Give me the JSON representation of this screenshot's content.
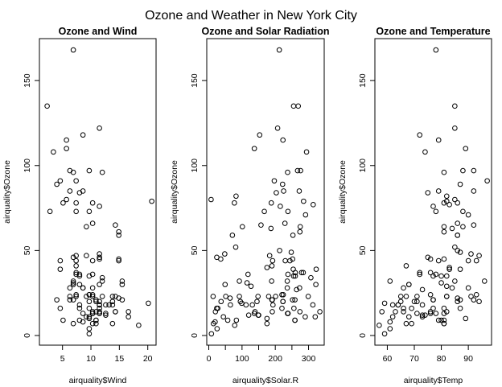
{
  "figure": {
    "title": "Ozone and Weather in New York City"
  },
  "chart_data": [
    {
      "type": "scatter",
      "title": "Ozone and Wind",
      "xlabel": "airquality$Wind",
      "ylabel": "airquality$Ozone",
      "xlim": [
        1.7,
        20.7
      ],
      "ylim": [
        1,
        168
      ],
      "xticks": [
        5,
        10,
        15,
        20
      ],
      "yticks": [
        0,
        50,
        100,
        150
      ],
      "points": [
        [
          7.4,
          41
        ],
        [
          8.0,
          36
        ],
        [
          12.6,
          12
        ],
        [
          11.5,
          18
        ],
        [
          8.6,
          28
        ],
        [
          13.8,
          23
        ],
        [
          20.1,
          19
        ],
        [
          8.6,
          8
        ],
        [
          6.9,
          7
        ],
        [
          9.7,
          16
        ],
        [
          9.2,
          11
        ],
        [
          10.9,
          14
        ],
        [
          13.2,
          18
        ],
        [
          11.5,
          14
        ],
        [
          12.0,
          34
        ],
        [
          18.4,
          6
        ],
        [
          11.5,
          30
        ],
        [
          9.7,
          11
        ],
        [
          9.7,
          1
        ],
        [
          16.6,
          11
        ],
        [
          9.7,
          4
        ],
        [
          12.0,
          32
        ],
        [
          12.0,
          23
        ],
        [
          14.9,
          45
        ],
        [
          5.7,
          115
        ],
        [
          7.4,
          37
        ],
        [
          9.7,
          10
        ],
        [
          13.8,
          7
        ],
        [
          11.5,
          48
        ],
        [
          8.0,
          35
        ],
        [
          14.9,
          61
        ],
        [
          20.7,
          79
        ],
        [
          9.2,
          64
        ],
        [
          4.6,
          39
        ],
        [
          10.9,
          9
        ],
        [
          4.6,
          16
        ],
        [
          10.3,
          78
        ],
        [
          9.7,
          35
        ],
        [
          10.3,
          66
        ],
        [
          11.5,
          122
        ],
        [
          4.0,
          89
        ],
        [
          5.7,
          110
        ],
        [
          7.4,
          44
        ],
        [
          8.6,
          28
        ],
        [
          14.3,
          65
        ],
        [
          14.9,
          22
        ],
        [
          14.9,
          59
        ],
        [
          14.3,
          23
        ],
        [
          6.9,
          31
        ],
        [
          10.3,
          44
        ],
        [
          6.3,
          21
        ],
        [
          5.1,
          9
        ],
        [
          11.5,
          45
        ],
        [
          6.9,
          168
        ],
        [
          9.7,
          73
        ],
        [
          11.5,
          76
        ],
        [
          8.6,
          118
        ],
        [
          8.0,
          84
        ],
        [
          8.6,
          85
        ],
        [
          12.0,
          96
        ],
        [
          7.4,
          78
        ],
        [
          7.4,
          73
        ],
        [
          7.4,
          91
        ],
        [
          9.2,
          47
        ],
        [
          6.9,
          32
        ],
        [
          13.8,
          20
        ],
        [
          7.4,
          23
        ],
        [
          6.9,
          21
        ],
        [
          7.4,
          24
        ],
        [
          4.6,
          44
        ],
        [
          4.0,
          21
        ],
        [
          10.3,
          28
        ],
        [
          8.0,
          9
        ],
        [
          8.6,
          13
        ],
        [
          11.5,
          46
        ],
        [
          11.5,
          18
        ],
        [
          11.5,
          13
        ],
        [
          9.7,
          24
        ],
        [
          11.5,
          16
        ],
        [
          10.3,
          13
        ],
        [
          6.3,
          23
        ],
        [
          7.4,
          36
        ],
        [
          10.9,
          7
        ],
        [
          10.3,
          14
        ],
        [
          15.5,
          30
        ],
        [
          14.3,
          14
        ],
        [
          12.6,
          18
        ],
        [
          9.7,
          20
        ],
        [
          3.4,
          108
        ],
        [
          8.0,
          30
        ],
        [
          5.7,
          80
        ],
        [
          9.7,
          97
        ],
        [
          2.3,
          135
        ],
        [
          6.3,
          97
        ],
        [
          6.3,
          85
        ],
        [
          6.9,
          96
        ],
        [
          5.1,
          78
        ],
        [
          2.8,
          73
        ],
        [
          4.6,
          91
        ],
        [
          7.4,
          47
        ],
        [
          15.5,
          32
        ],
        [
          10.9,
          20
        ],
        [
          10.3,
          23
        ],
        [
          10.9,
          21
        ],
        [
          9.7,
          24
        ],
        [
          14.9,
          44
        ],
        [
          15.5,
          21
        ],
        [
          6.3,
          28
        ],
        [
          10.9,
          9
        ],
        [
          11.5,
          13
        ],
        [
          6.9,
          46
        ],
        [
          13.8,
          18
        ],
        [
          10.3,
          13
        ],
        [
          10.3,
          24
        ],
        [
          8.0,
          16
        ],
        [
          12.6,
          13
        ],
        [
          9.2,
          23
        ],
        [
          10.3,
          36
        ],
        [
          10.3,
          7
        ],
        [
          16.6,
          14
        ],
        [
          6.9,
          30
        ],
        [
          14.3,
          14
        ],
        [
          8.0,
          18
        ],
        [
          11.5,
          20
        ]
      ]
    },
    {
      "type": "scatter",
      "title": "Ozone and Solar Radiation",
      "xlabel": "airquality$Solar.R",
      "ylabel": "airquality$Ozone",
      "xlim": [
        7,
        334
      ],
      "ylim": [
        1,
        168
      ],
      "xticks": [
        0,
        50,
        100,
        150,
        200,
        250,
        300
      ],
      "yticks": [
        0,
        50,
        100,
        150
      ],
      "points": [
        [
          190,
          41
        ],
        [
          118,
          36
        ],
        [
          149,
          12
        ],
        [
          313,
          18
        ],
        [
          299,
          23
        ],
        [
          99,
          19
        ],
        [
          19,
          8
        ],
        [
          256,
          16
        ],
        [
          290,
          11
        ],
        [
          274,
          14
        ],
        [
          65,
          18
        ],
        [
          334,
          14
        ],
        [
          307,
          34
        ],
        [
          78,
          6
        ],
        [
          322,
          30
        ],
        [
          44,
          11
        ],
        [
          8,
          1
        ],
        [
          320,
          11
        ],
        [
          25,
          4
        ],
        [
          92,
          32
        ],
        [
          13,
          23
        ],
        [
          252,
          45
        ],
        [
          223,
          115
        ],
        [
          279,
          37
        ],
        [
          127,
          29
        ],
        [
          291,
          71
        ],
        [
          323,
          39
        ],
        [
          148,
          23
        ],
        [
          191,
          21
        ],
        [
          284,
          37
        ],
        [
          37,
          20
        ],
        [
          120,
          12
        ],
        [
          137,
          13
        ],
        [
          269,
          135
        ],
        [
          248,
          49
        ],
        [
          236,
          32
        ],
        [
          101,
          64
        ],
        [
          175,
          40
        ],
        [
          314,
          77
        ],
        [
          276,
          97
        ],
        [
          267,
          97
        ],
        [
          272,
          85
        ],
        [
          175,
          10
        ],
        [
          264,
          27
        ],
        [
          175,
          7
        ],
        [
          48,
          48
        ],
        [
          260,
          35
        ],
        [
          274,
          61
        ],
        [
          285,
          79
        ],
        [
          187,
          63
        ],
        [
          220,
          16
        ],
        [
          7,
          80
        ],
        [
          294,
          108
        ],
        [
          223,
          20
        ],
        [
          81,
          52
        ],
        [
          82,
          82
        ],
        [
          213,
          50
        ],
        [
          275,
          64
        ],
        [
          253,
          59
        ],
        [
          254,
          39
        ],
        [
          83,
          9
        ],
        [
          24,
          16
        ],
        [
          77,
          78
        ],
        [
          255,
          35
        ],
        [
          229,
          66
        ],
        [
          207,
          122
        ],
        [
          222,
          89
        ],
        [
          137,
          110
        ],
        [
          192,
          44
        ],
        [
          273,
          28
        ],
        [
          157,
          65
        ],
        [
          64,
          22
        ],
        [
          71,
          59
        ],
        [
          51,
          23
        ],
        [
          115,
          31
        ],
        [
          244,
          44
        ],
        [
          190,
          21
        ],
        [
          259,
          9
        ],
        [
          36,
          45
        ],
        [
          212,
          168
        ],
        [
          238,
          73
        ],
        [
          215,
          76
        ],
        [
          153,
          118
        ],
        [
          203,
          84
        ],
        [
          225,
          85
        ],
        [
          237,
          96
        ],
        [
          188,
          78
        ],
        [
          167,
          73
        ],
        [
          197,
          91
        ],
        [
          183,
          47
        ],
        [
          189,
          32
        ],
        [
          95,
          20
        ],
        [
          92,
          23
        ],
        [
          252,
          21
        ],
        [
          220,
          24
        ],
        [
          230,
          44
        ],
        [
          259,
          21
        ],
        [
          236,
          28
        ],
        [
          259,
          9
        ],
        [
          238,
          13
        ],
        [
          24,
          46
        ],
        [
          112,
          18
        ],
        [
          237,
          13
        ],
        [
          224,
          24
        ],
        [
          27,
          16
        ],
        [
          238,
          13
        ],
        [
          201,
          23
        ],
        [
          238,
          36
        ],
        [
          14,
          7
        ],
        [
          139,
          14
        ],
        [
          49,
          30
        ],
        [
          20,
          14
        ],
        [
          193,
          18
        ],
        [
          145,
          20
        ],
        [
          191,
          14
        ],
        [
          131,
          18
        ],
        [
          223,
          20
        ],
        [
          180,
          23
        ],
        [
          255,
          135
        ],
        [
          260,
          37
        ],
        [
          150,
          12
        ],
        [
          57,
          9
        ]
      ]
    },
    {
      "type": "scatter",
      "title": "Ozone and Temperature",
      "xlabel": "airquality$Temp",
      "ylabel": "airquality$Ozone",
      "xlim": [
        57,
        97
      ],
      "ylim": [
        1,
        168
      ],
      "xticks": [
        60,
        70,
        80,
        90
      ],
      "yticks": [
        0,
        50,
        100,
        150
      ],
      "points": [
        [
          67,
          41
        ],
        [
          72,
          36
        ],
        [
          74,
          12
        ],
        [
          62,
          18
        ],
        [
          66,
          28
        ],
        [
          65,
          23
        ],
        [
          59,
          19
        ],
        [
          61,
          8
        ],
        [
          69,
          7
        ],
        [
          66,
          16
        ],
        [
          68,
          11
        ],
        [
          58,
          14
        ],
        [
          64,
          18
        ],
        [
          66,
          14
        ],
        [
          57,
          6
        ],
        [
          68,
          30
        ],
        [
          62,
          11
        ],
        [
          59,
          1
        ],
        [
          73,
          11
        ],
        [
          61,
          4
        ],
        [
          61,
          32
        ],
        [
          67,
          23
        ],
        [
          81,
          45
        ],
        [
          79,
          115
        ],
        [
          76,
          37
        ],
        [
          82,
          29
        ],
        [
          90,
          71
        ],
        [
          87,
          39
        ],
        [
          82,
          23
        ],
        [
          77,
          21
        ],
        [
          72,
          37
        ],
        [
          65,
          20
        ],
        [
          73,
          12
        ],
        [
          76,
          13
        ],
        [
          85,
          135
        ],
        [
          87,
          49
        ],
        [
          85,
          32
        ],
        [
          81,
          64
        ],
        [
          83,
          40
        ],
        [
          83,
          77
        ],
        [
          88,
          97
        ],
        [
          92,
          97
        ],
        [
          92,
          85
        ],
        [
          89,
          10
        ],
        [
          73,
          27
        ],
        [
          81,
          7
        ],
        [
          91,
          48
        ],
        [
          80,
          35
        ],
        [
          81,
          61
        ],
        [
          82,
          79
        ],
        [
          84,
          63
        ],
        [
          87,
          16
        ],
        [
          85,
          80
        ],
        [
          74,
          108
        ],
        [
          86,
          20
        ],
        [
          85,
          52
        ],
        [
          82,
          82
        ],
        [
          86,
          50
        ],
        [
          88,
          64
        ],
        [
          86,
          59
        ],
        [
          83,
          39
        ],
        [
          81,
          9
        ],
        [
          81,
          16
        ],
        [
          81,
          78
        ],
        [
          82,
          35
        ],
        [
          86,
          66
        ],
        [
          85,
          122
        ],
        [
          87,
          89
        ],
        [
          89,
          110
        ],
        [
          90,
          44
        ],
        [
          90,
          28
        ],
        [
          92,
          65
        ],
        [
          86,
          22
        ],
        [
          86,
          59
        ],
        [
          82,
          23
        ],
        [
          80,
          31
        ],
        [
          79,
          44
        ],
        [
          77,
          21
        ],
        [
          79,
          9
        ],
        [
          76,
          45
        ],
        [
          78,
          168
        ],
        [
          78,
          73
        ],
        [
          77,
          76
        ],
        [
          72,
          118
        ],
        [
          75,
          84
        ],
        [
          79,
          85
        ],
        [
          81,
          96
        ],
        [
          86,
          78
        ],
        [
          88,
          73
        ],
        [
          97,
          91
        ],
        [
          94,
          47
        ],
        [
          96,
          32
        ],
        [
          94,
          20
        ],
        [
          91,
          23
        ],
        [
          92,
          21
        ],
        [
          93,
          24
        ],
        [
          93,
          44
        ],
        [
          87,
          21
        ],
        [
          84,
          28
        ],
        [
          80,
          9
        ],
        [
          78,
          13
        ],
        [
          75,
          46
        ],
        [
          73,
          18
        ],
        [
          81,
          13
        ],
        [
          76,
          24
        ],
        [
          77,
          16
        ],
        [
          71,
          13
        ],
        [
          71,
          23
        ],
        [
          78,
          36
        ],
        [
          67,
          7
        ],
        [
          76,
          14
        ],
        [
          68,
          30
        ],
        [
          82,
          14
        ],
        [
          64,
          18
        ],
        [
          71,
          20
        ],
        [
          81,
          7
        ],
        [
          69,
          16
        ],
        [
          63,
          14
        ],
        [
          70,
          20
        ],
        [
          77,
          35
        ]
      ]
    }
  ]
}
